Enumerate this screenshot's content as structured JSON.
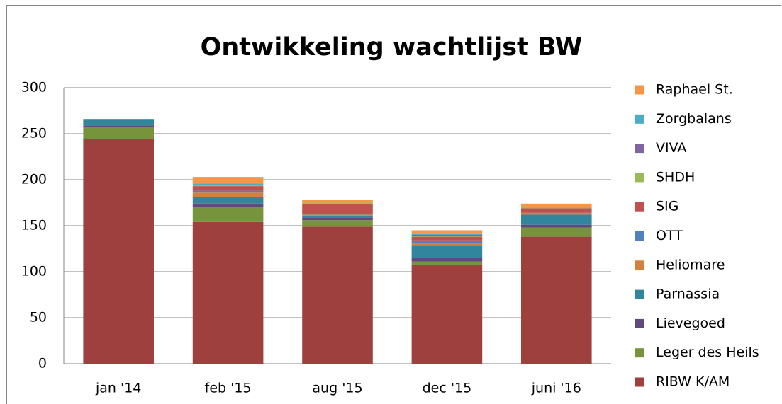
{
  "chart_data": {
    "type": "stacked-bar",
    "title": "Ontwikkeling wachtlijst BW",
    "categories": [
      "jan '14",
      "feb '15",
      "aug '15",
      "dec '15",
      "juni '16"
    ],
    "series": [
      {
        "name": "RIBW K/AM",
        "color": "#9e413e",
        "values": [
          244,
          154,
          149,
          107,
          138
        ]
      },
      {
        "name": "Leger des Heils",
        "color": "#77933c",
        "values": [
          13,
          16,
          7,
          4,
          10
        ]
      },
      {
        "name": "Lievegoed",
        "color": "#604a7b",
        "values": [
          2,
          4,
          3,
          4,
          3
        ]
      },
      {
        "name": "Parnassia",
        "color": "#31859c",
        "values": [
          7,
          7,
          2,
          14,
          11
        ]
      },
      {
        "name": "Heliomare",
        "color": "#d2803c",
        "values": [
          0,
          5,
          1,
          2,
          2
        ]
      },
      {
        "name": "OTT",
        "color": "#4f81bd",
        "values": [
          0,
          2,
          1,
          3,
          0
        ]
      },
      {
        "name": "SIG",
        "color": "#c0504d",
        "values": [
          0,
          5,
          11,
          4,
          5
        ]
      },
      {
        "name": "SHDH",
        "color": "#9bbb59",
        "values": [
          0,
          1,
          1,
          1,
          1
        ]
      },
      {
        "name": "VIVA",
        "color": "#8064a2",
        "values": [
          0,
          0,
          0,
          1,
          0
        ]
      },
      {
        "name": "Zorgbalans",
        "color": "#4bacc6",
        "values": [
          0,
          2,
          0,
          1,
          0
        ]
      },
      {
        "name": "Raphael St.",
        "color": "#f79646",
        "values": [
          0,
          7,
          3,
          4,
          4
        ]
      }
    ],
    "ylim": [
      0,
      300
    ],
    "yticks": [
      0,
      50,
      100,
      150,
      200,
      250,
      300
    ],
    "grid": true,
    "legend": "right"
  }
}
